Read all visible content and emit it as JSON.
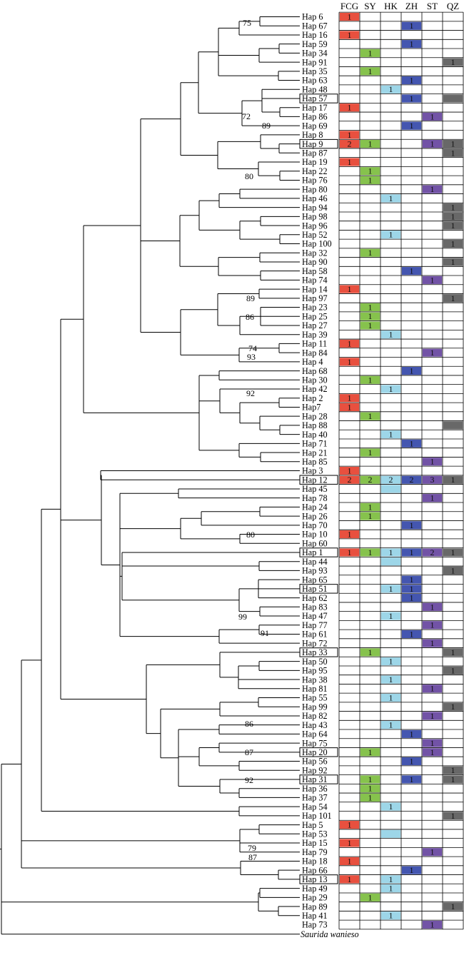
{
  "columns": [
    "FCG",
    "SY",
    "HK",
    "ZH",
    "ST",
    "QZ"
  ],
  "column_colors": [
    "#e8503f",
    "#86c24d",
    "#9dd6e8",
    "#4456b0",
    "#7253a6",
    "#686868"
  ],
  "tips": [
    {
      "label": "Hap 6",
      "cells": [
        "1",
        "",
        "",
        "",
        "",
        ""
      ]
    },
    {
      "label": "Hap 67",
      "cells": [
        "",
        "",
        "",
        "1",
        "",
        ""
      ]
    },
    {
      "label": "Hap 16",
      "cells": [
        "1",
        "",
        "",
        "",
        "",
        ""
      ]
    },
    {
      "label": "Hap 59",
      "cells": [
        "",
        "",
        "",
        "1",
        "",
        ""
      ]
    },
    {
      "label": "Hap 34",
      "cells": [
        "",
        "1",
        "",
        "",
        "",
        ""
      ]
    },
    {
      "label": "Hap 91",
      "cells": [
        "",
        "",
        "",
        "",
        "",
        "1"
      ]
    },
    {
      "label": "Hap 35",
      "cells": [
        "",
        "1",
        "",
        "",
        "",
        ""
      ]
    },
    {
      "label": "Hap 63",
      "cells": [
        "",
        "",
        "",
        "1",
        "",
        ""
      ]
    },
    {
      "label": "Hap 48",
      "cells": [
        "",
        "",
        "1",
        "",
        "",
        ""
      ]
    },
    {
      "label": "Hap 57",
      "boxed": true,
      "cells": [
        "",
        "",
        "",
        "1",
        "",
        "f"
      ]
    },
    {
      "label": "Hap 17",
      "cells": [
        "1",
        "",
        "",
        "",
        "",
        ""
      ]
    },
    {
      "label": "Hap 86",
      "cells": [
        "",
        "",
        "",
        "",
        "1",
        ""
      ]
    },
    {
      "label": "Hap 69",
      "cells": [
        "",
        "",
        "",
        "1",
        "",
        ""
      ]
    },
    {
      "label": "Hap 8",
      "cells": [
        "1",
        "",
        "",
        "",
        "",
        ""
      ]
    },
    {
      "label": "Hap 9",
      "boxed": true,
      "cells": [
        "2",
        "1",
        "",
        "",
        "1",
        "1"
      ]
    },
    {
      "label": "Hap 87",
      "cells": [
        "",
        "",
        "",
        "",
        "",
        "1"
      ]
    },
    {
      "label": "Hap 19",
      "cells": [
        "1",
        "",
        "",
        "",
        "",
        ""
      ]
    },
    {
      "label": "Hap 22",
      "cells": [
        "",
        "1",
        "",
        "",
        "",
        ""
      ]
    },
    {
      "label": "Hap 76",
      "cells": [
        "",
        "1",
        "",
        "",
        "",
        ""
      ]
    },
    {
      "label": "Hap 80",
      "cells": [
        "",
        "",
        "",
        "",
        "1",
        ""
      ]
    },
    {
      "label": "Hap 46",
      "cells": [
        "",
        "",
        "1",
        "",
        "",
        ""
      ]
    },
    {
      "label": "Hap 94",
      "cells": [
        "",
        "",
        "",
        "",
        "",
        "1"
      ]
    },
    {
      "label": "Hap 98",
      "cells": [
        "",
        "",
        "",
        "",
        "",
        "1"
      ]
    },
    {
      "label": "Hap 96",
      "cells": [
        "",
        "",
        "",
        "",
        "",
        "1"
      ]
    },
    {
      "label": "Hap 52",
      "cells": [
        "",
        "",
        "1",
        "",
        "",
        ""
      ]
    },
    {
      "label": "Hap 100",
      "cells": [
        "",
        "",
        "",
        "",
        "",
        "1"
      ]
    },
    {
      "label": "Hap 32",
      "cells": [
        "",
        "1",
        "",
        "",
        "",
        ""
      ]
    },
    {
      "label": "Hap 90",
      "cells": [
        "",
        "",
        "",
        "",
        "",
        "1"
      ]
    },
    {
      "label": "Hap 58",
      "cells": [
        "",
        "",
        "",
        "1",
        "",
        ""
      ]
    },
    {
      "label": "Hap 74",
      "cells": [
        "",
        "",
        "",
        "",
        "1",
        ""
      ]
    },
    {
      "label": "Hap 14",
      "cells": [
        "1",
        "",
        "",
        "",
        "",
        ""
      ]
    },
    {
      "label": "Hap 97",
      "cells": [
        "",
        "",
        "",
        "",
        "",
        "1"
      ]
    },
    {
      "label": "Hap 23",
      "cells": [
        "",
        "1",
        "",
        "",
        "",
        ""
      ]
    },
    {
      "label": "Hap 25",
      "cells": [
        "",
        "1",
        "",
        "",
        "",
        ""
      ]
    },
    {
      "label": "Hap 27",
      "cells": [
        "",
        "1",
        "",
        "",
        "",
        ""
      ]
    },
    {
      "label": "Hap 39",
      "cells": [
        "",
        "",
        "1",
        "",
        "",
        ""
      ]
    },
    {
      "label": "Hap 11",
      "cells": [
        "1",
        "",
        "",
        "",
        "",
        ""
      ]
    },
    {
      "label": "Hap 84",
      "cells": [
        "",
        "",
        "",
        "",
        "1",
        ""
      ]
    },
    {
      "label": "Hap 4",
      "cells": [
        "1",
        "",
        "",
        "",
        "",
        ""
      ]
    },
    {
      "label": "Hap 68",
      "cells": [
        "",
        "",
        "",
        "1",
        "",
        ""
      ]
    },
    {
      "label": "Hap 30",
      "cells": [
        "",
        "1",
        "",
        "",
        "",
        ""
      ]
    },
    {
      "label": "Hap 42",
      "cells": [
        "",
        "",
        "1",
        "",
        "",
        ""
      ]
    },
    {
      "label": "Hap 2",
      "cells": [
        "1",
        "",
        "",
        "",
        "",
        ""
      ]
    },
    {
      "label": "Hap7",
      "cells": [
        "1",
        "",
        "",
        "",
        "",
        ""
      ]
    },
    {
      "label": "Hap 28",
      "cells": [
        "",
        "1",
        "",
        "",
        "",
        ""
      ]
    },
    {
      "label": "Hap 88",
      "cells": [
        "",
        "",
        "",
        "",
        "",
        "f"
      ]
    },
    {
      "label": "Hap 40",
      "cells": [
        "",
        "",
        "1",
        "",
        "",
        ""
      ]
    },
    {
      "label": "Hap 71",
      "cells": [
        "",
        "",
        "",
        "1",
        "",
        ""
      ]
    },
    {
      "label": "Hap 21",
      "cells": [
        "",
        "1",
        "",
        "",
        "",
        ""
      ]
    },
    {
      "label": "Hap 85",
      "cells": [
        "",
        "",
        "",
        "",
        "1",
        ""
      ]
    },
    {
      "label": "Hap 3",
      "cells": [
        "1",
        "",
        "",
        "",
        "",
        ""
      ]
    },
    {
      "label": "Hap 12",
      "boxed": true,
      "cells": [
        "2",
        "2",
        "2",
        "2",
        "3",
        "1"
      ]
    },
    {
      "label": "Hap 45",
      "cells": [
        "",
        "",
        "f",
        "",
        "",
        ""
      ]
    },
    {
      "label": "Hap 78",
      "cells": [
        "",
        "",
        "",
        "",
        "1",
        ""
      ]
    },
    {
      "label": "Hap 24",
      "cells": [
        "",
        "1",
        "",
        "",
        "",
        ""
      ]
    },
    {
      "label": "Hap 26",
      "cells": [
        "",
        "1",
        "",
        "",
        "",
        ""
      ]
    },
    {
      "label": "Hap 70",
      "cells": [
        "",
        "",
        "",
        "1",
        "",
        ""
      ]
    },
    {
      "label": "Hap 10",
      "cells": [
        "1",
        "",
        "",
        "",
        "",
        ""
      ]
    },
    {
      "label": "Hap 60",
      "cells": [
        "",
        "",
        "",
        "",
        "",
        ""
      ]
    },
    {
      "label": "Hap 1",
      "boxed": true,
      "cells": [
        "1",
        "1",
        "1",
        "1",
        "2",
        "1"
      ]
    },
    {
      "label": "Hap 44",
      "cells": [
        "",
        "",
        "f",
        "",
        "",
        ""
      ]
    },
    {
      "label": "Hap 93",
      "cells": [
        "",
        "",
        "",
        "",
        "",
        "1"
      ]
    },
    {
      "label": "Hap 65",
      "cells": [
        "",
        "",
        "",
        "1",
        "",
        ""
      ]
    },
    {
      "label": "Hap 51",
      "boxed": true,
      "cells": [
        "",
        "",
        "1",
        "1",
        "",
        ""
      ]
    },
    {
      "label": "Hap 62",
      "cells": [
        "",
        "",
        "",
        "1",
        "",
        ""
      ]
    },
    {
      "label": "Hap 83",
      "cells": [
        "",
        "",
        "",
        "",
        "1",
        ""
      ]
    },
    {
      "label": "Hap 47",
      "cells": [
        "",
        "",
        "1",
        "",
        "",
        ""
      ]
    },
    {
      "label": "Hap 77",
      "cells": [
        "",
        "",
        "",
        "",
        "1",
        ""
      ]
    },
    {
      "label": "Hap 61",
      "cells": [
        "",
        "",
        "",
        "1",
        "",
        ""
      ]
    },
    {
      "label": "Hap 72",
      "cells": [
        "",
        "",
        "",
        "",
        "1",
        ""
      ]
    },
    {
      "label": "Hap 33",
      "boxed": true,
      "cells": [
        "",
        "1",
        "",
        "",
        "",
        "1"
      ]
    },
    {
      "label": "Hap 50",
      "cells": [
        "",
        "",
        "1",
        "",
        "",
        ""
      ]
    },
    {
      "label": "Hap 95",
      "cells": [
        "",
        "",
        "",
        "",
        "",
        "1"
      ]
    },
    {
      "label": "Hap 38",
      "cells": [
        "",
        "",
        "1",
        "",
        "",
        ""
      ]
    },
    {
      "label": "Hap 81",
      "cells": [
        "",
        "",
        "",
        "",
        "1",
        ""
      ]
    },
    {
      "label": "Hap 55",
      "cells": [
        "",
        "",
        "1",
        "",
        "",
        ""
      ]
    },
    {
      "label": "Hap 99",
      "cells": [
        "",
        "",
        "",
        "",
        "",
        "1"
      ]
    },
    {
      "label": "Hap 82",
      "cells": [
        "",
        "",
        "",
        "",
        "1",
        ""
      ]
    },
    {
      "label": "Hap 43",
      "cells": [
        "",
        "",
        "1",
        "",
        "",
        ""
      ]
    },
    {
      "label": "Hap 64",
      "cells": [
        "",
        "",
        "",
        "1",
        "",
        ""
      ]
    },
    {
      "label": "Hap 75",
      "cells": [
        "",
        "",
        "",
        "",
        "1",
        ""
      ]
    },
    {
      "label": "Hap 20",
      "boxed": true,
      "cells": [
        "",
        "1",
        "",
        "",
        "1",
        ""
      ]
    },
    {
      "label": "Hap 56",
      "cells": [
        "",
        "",
        "",
        "1",
        "",
        ""
      ]
    },
    {
      "label": "Hap 92",
      "cells": [
        "",
        "",
        "",
        "",
        "",
        "1"
      ]
    },
    {
      "label": "Hap 31",
      "boxed": true,
      "cells": [
        "",
        "1",
        "",
        "1",
        "",
        "1"
      ]
    },
    {
      "label": "Hap 36",
      "cells": [
        "",
        "1",
        "",
        "",
        "",
        ""
      ]
    },
    {
      "label": "Hap 37",
      "cells": [
        "",
        "1",
        "",
        "",
        "",
        ""
      ]
    },
    {
      "label": "Hap 54",
      "cells": [
        "",
        "",
        "1",
        "",
        "",
        ""
      ]
    },
    {
      "label": "Hap 101",
      "cells": [
        "",
        "",
        "",
        "",
        "",
        "1"
      ]
    },
    {
      "label": "Hap 5",
      "cells": [
        "1",
        "",
        "",
        "",
        "",
        ""
      ]
    },
    {
      "label": "Hap 53",
      "cells": [
        "",
        "",
        "f",
        "",
        "",
        ""
      ]
    },
    {
      "label": "Hap 15",
      "cells": [
        "1",
        "",
        "",
        "",
        "",
        ""
      ]
    },
    {
      "label": "Hap 79",
      "cells": [
        "",
        "",
        "",
        "",
        "1",
        ""
      ]
    },
    {
      "label": "Hap 18",
      "cells": [
        "1",
        "",
        "",
        "",
        "",
        ""
      ]
    },
    {
      "label": "Hap 66",
      "cells": [
        "",
        "",
        "",
        "1",
        "",
        ""
      ]
    },
    {
      "label": "Hap 13",
      "boxed": true,
      "cells": [
        "1",
        "",
        "1",
        "",
        "",
        ""
      ]
    },
    {
      "label": "Hap 49",
      "cells": [
        "",
        "",
        "1",
        "",
        "",
        ""
      ]
    },
    {
      "label": "Hap 29",
      "cells": [
        "",
        "1",
        "",
        "",
        "",
        ""
      ]
    },
    {
      "label": "Hap 89",
      "cells": [
        "",
        "",
        "",
        "",
        "",
        "1"
      ]
    },
    {
      "label": "Hap 41",
      "cells": [
        "",
        "",
        "1",
        "",
        "",
        ""
      ]
    },
    {
      "label": "Hap 73",
      "cells": [
        "",
        "",
        "",
        "",
        "1",
        ""
      ]
    }
  ],
  "outgroup": "Saurida wanieso",
  "bootstrap": [
    "75",
    "72",
    "89",
    "80",
    "89",
    "86",
    "74",
    "93",
    "92",
    "80",
    "99",
    "91",
    "86",
    "87",
    "92",
    "79",
    "87"
  ]
}
